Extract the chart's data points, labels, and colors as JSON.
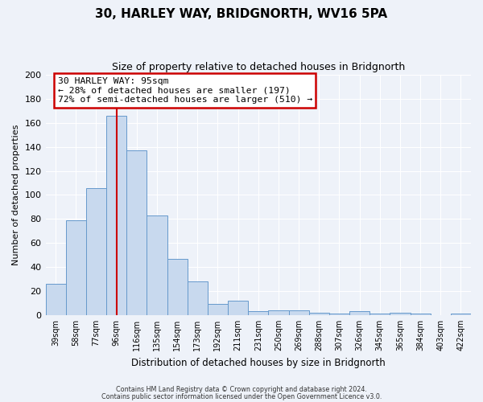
{
  "title": "30, HARLEY WAY, BRIDGNORTH, WV16 5PA",
  "subtitle": "Size of property relative to detached houses in Bridgnorth",
  "xlabel": "Distribution of detached houses by size in Bridgnorth",
  "ylabel": "Number of detached properties",
  "bar_color": "#c8d9ee",
  "bar_edge_color": "#6699cc",
  "background_color": "#eef2f9",
  "grid_color": "#ffffff",
  "bin_labels": [
    "39sqm",
    "58sqm",
    "77sqm",
    "96sqm",
    "116sqm",
    "135sqm",
    "154sqm",
    "173sqm",
    "192sqm",
    "211sqm",
    "231sqm",
    "250sqm",
    "269sqm",
    "288sqm",
    "307sqm",
    "326sqm",
    "345sqm",
    "365sqm",
    "384sqm",
    "403sqm",
    "422sqm"
  ],
  "values": [
    26,
    79,
    106,
    166,
    137,
    83,
    47,
    28,
    9,
    12,
    3,
    4,
    4,
    2,
    1,
    3,
    1,
    2,
    1,
    0,
    1
  ],
  "property_line_x": 3.5,
  "annotation_title": "30 HARLEY WAY: 95sqm",
  "annotation_line1": "← 28% of detached houses are smaller (197)",
  "annotation_line2": "72% of semi-detached houses are larger (510) →",
  "annotation_box_color": "#ffffff",
  "annotation_border_color": "#cc0000",
  "vline_color": "#cc0000",
  "ylim": [
    0,
    200
  ],
  "yticks": [
    0,
    20,
    40,
    60,
    80,
    100,
    120,
    140,
    160,
    180,
    200
  ],
  "footer1": "Contains HM Land Registry data © Crown copyright and database right 2024.",
  "footer2": "Contains public sector information licensed under the Open Government Licence v3.0."
}
